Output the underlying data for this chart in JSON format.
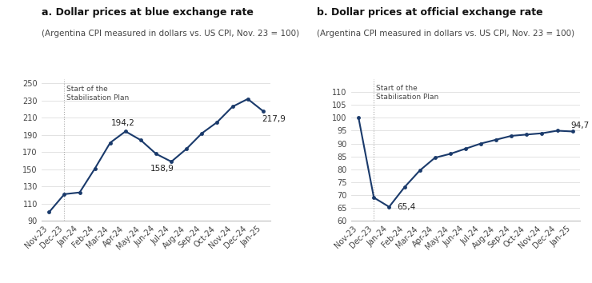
{
  "labels": [
    "Nov-23",
    "Dec-23",
    "Jan-24",
    "Feb-24",
    "Mar-24",
    "Apr-24",
    "May-24",
    "Jun-24",
    "Jul-24",
    "Aug-24",
    "Sep-24",
    "Oct-24",
    "Nov-24",
    "Dec-24",
    "Jan-25"
  ],
  "blue_values": [
    100,
    121,
    123,
    151,
    181,
    194.2,
    184,
    168,
    158.9,
    174,
    192,
    205,
    223,
    232,
    217.9
  ],
  "official_values": [
    100,
    69,
    65.4,
    73,
    79.5,
    84.5,
    86,
    88,
    90,
    91.5,
    93,
    93.5,
    94,
    95,
    94.7
  ],
  "line_color": "#1a3a6b",
  "vline_color": "#aaaaaa",
  "title_a": "a. Dollar prices at blue exchange rate",
  "title_b": "b. Dollar prices at official exchange rate",
  "subtitle": "(Argentina CPI measured in dollars vs. US CPI, Nov. 23 = 100)",
  "annotation_label": "Start of the\nStabilisation Plan",
  "blue_annotate_label": "194,2",
  "blue_annotate_idx": 5,
  "blue_min_label": "158,9",
  "blue_min_idx": 8,
  "blue_last_label": "217,9",
  "blue_last_idx": 14,
  "official_min_label": "65,4",
  "official_min_idx": 2,
  "official_last_label": "94,7",
  "official_last_idx": 14,
  "blue_ylim": [
    90,
    255
  ],
  "blue_yticks": [
    90,
    110,
    130,
    150,
    170,
    190,
    210,
    230,
    250
  ],
  "official_ylim": [
    60,
    115
  ],
  "official_yticks": [
    60,
    65,
    70,
    75,
    80,
    85,
    90,
    95,
    100,
    105,
    110
  ],
  "bg_color": "#ffffff",
  "text_color": "#222222",
  "marker_size": 3.5
}
